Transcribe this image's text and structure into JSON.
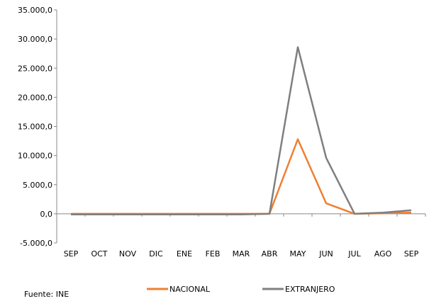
{
  "chart_data": {
    "type": "line",
    "title": "",
    "xlabel": "",
    "ylabel": "",
    "categories": [
      "SEP",
      "OCT",
      "NOV",
      "DIC",
      "ENE",
      "FEB",
      "MAR",
      "ABR",
      "MAY",
      "JUN",
      "JUL",
      "AGO",
      "SEP"
    ],
    "ylim": [
      -5000,
      35000
    ],
    "yticks": [
      -5000,
      0,
      5000,
      10000,
      15000,
      20000,
      25000,
      30000,
      35000
    ],
    "ytick_labels": [
      "-5.000,0",
      "0,0",
      "5.000,0",
      "10.000,0",
      "15.000,0",
      "20.000,0",
      "25.000,0",
      "30.000,0",
      "35.000,0"
    ],
    "series": [
      {
        "name": "NACIONAL",
        "color": "#F07F32",
        "values": [
          0,
          0,
          0,
          0,
          0,
          0,
          0,
          0,
          12800,
          1800,
          0,
          100,
          200
        ]
      },
      {
        "name": "EXTRANJERO",
        "color": "#7F7F7F",
        "values": [
          -100,
          -100,
          -100,
          -100,
          -100,
          -100,
          -100,
          0,
          28600,
          9600,
          0,
          200,
          600
        ]
      }
    ],
    "grid": false,
    "legend_position": "bottom"
  },
  "footer": {
    "source": "Fuente: INE"
  }
}
